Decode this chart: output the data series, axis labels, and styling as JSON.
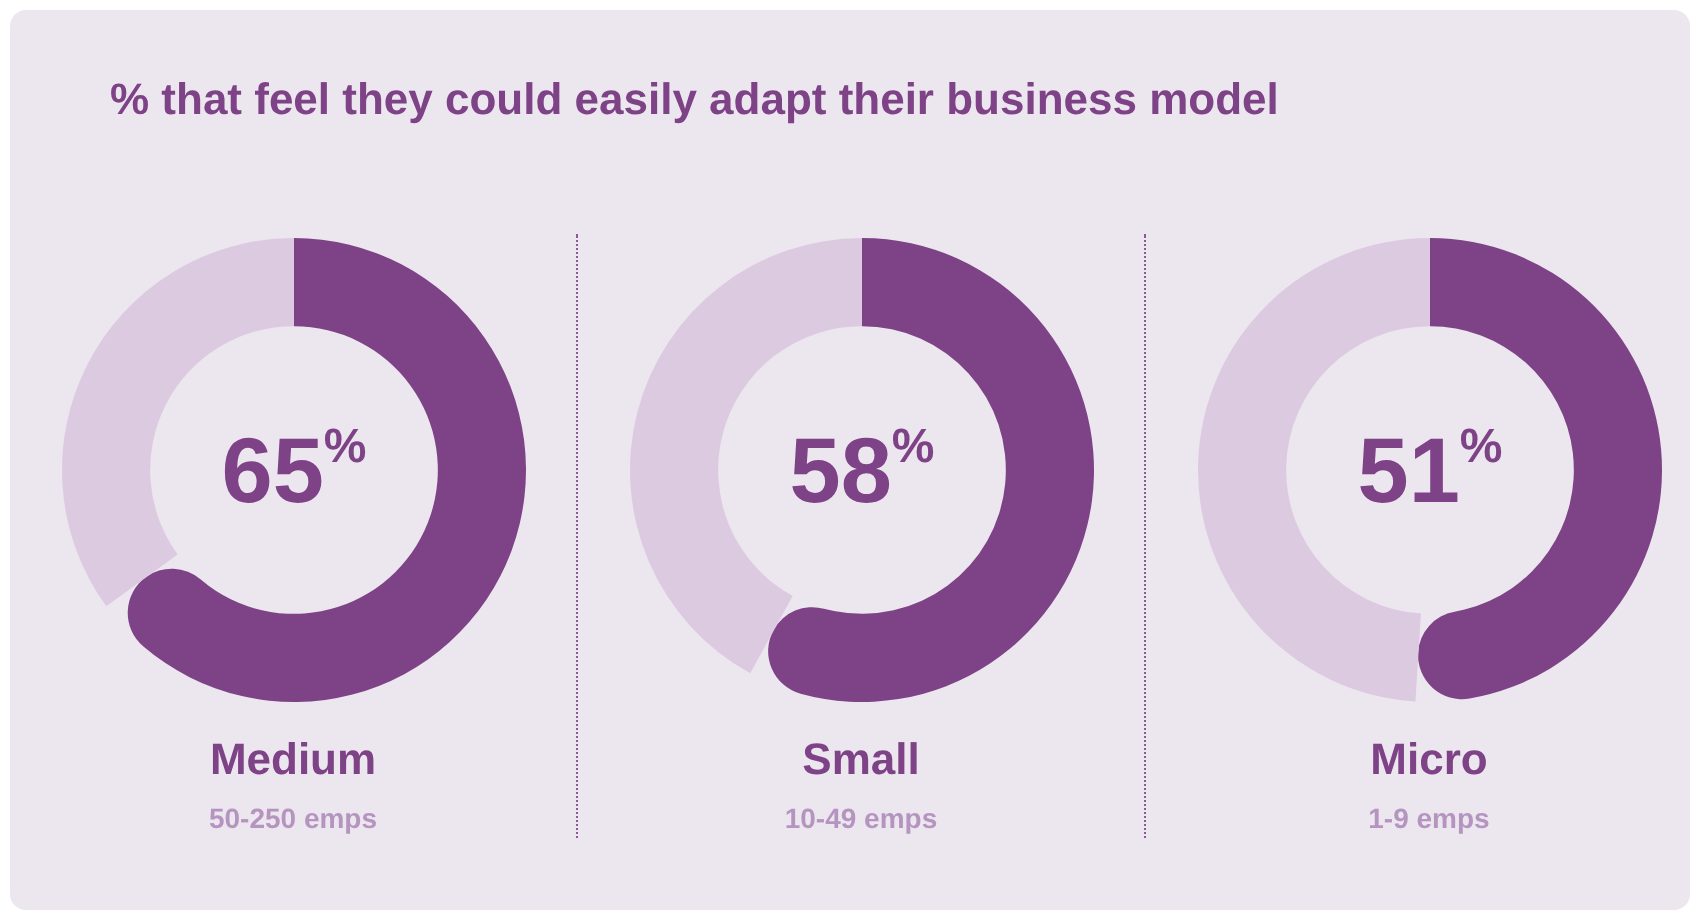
{
  "chart_data": [
    {
      "type": "donut",
      "title": "% that feel they could easily adapt their business model",
      "categories": [
        null,
        null
      ],
      "values": [
        65,
        35
      ],
      "colors": [
        "#7e4287",
        "#dccbe0"
      ],
      "xlabel": "Medium",
      "annotations": [
        "65$^{%}$",
        "50-250 emps"
      ],
      "legend": false
    },
    {
      "type": "donut",
      "categories": [
        null,
        null
      ],
      "values": [
        58,
        42
      ],
      "colors": [
        "#7e4287",
        "#dccbe0"
      ],
      "xlabel": "Small",
      "annotations": [
        "58$^{%}$",
        "10-49 emps"
      ],
      "legend": false
    },
    {
      "type": "donut",
      "categories": [
        null,
        null
      ],
      "values": [
        51,
        49
      ],
      "colors": [
        "#7e4287",
        "#dccbe0"
      ],
      "xlabel": "Micro",
      "annotations": [
        "51$^{%}$",
        "1-9 emps"
      ],
      "legend": false
    }
  ]
}
